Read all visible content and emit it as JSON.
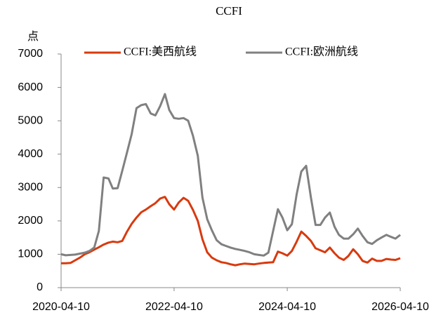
{
  "chart_data": {
    "type": "line",
    "title": "CCFI",
    "y_label": "点",
    "x": [
      "2020-04-10",
      "2020-05-10",
      "2020-06-10",
      "2020-07-10",
      "2020-08-10",
      "2020-09-10",
      "2020-10-10",
      "2020-11-10",
      "2020-12-10",
      "2021-01-10",
      "2021-02-10",
      "2021-03-10",
      "2021-04-10",
      "2021-05-10",
      "2021-06-10",
      "2021-07-10",
      "2021-08-10",
      "2021-09-10",
      "2021-10-10",
      "2021-11-10",
      "2021-12-10",
      "2022-01-10",
      "2022-02-10",
      "2022-03-10",
      "2022-04-10",
      "2022-05-10",
      "2022-06-10",
      "2022-07-10",
      "2022-08-10",
      "2022-09-10",
      "2022-10-10",
      "2022-11-10",
      "2022-12-10",
      "2023-01-10",
      "2023-02-10",
      "2023-03-10",
      "2023-04-10",
      "2023-05-10",
      "2023-06-10",
      "2023-07-10",
      "2023-08-10",
      "2023-09-10",
      "2023-10-10",
      "2023-11-10",
      "2023-12-10",
      "2024-01-10",
      "2024-02-10",
      "2024-03-10",
      "2024-04-10",
      "2024-05-10",
      "2024-06-10",
      "2024-07-10",
      "2024-08-10",
      "2024-09-10",
      "2024-10-10",
      "2024-11-10",
      "2024-12-10",
      "2025-01-10",
      "2025-02-10",
      "2025-03-10",
      "2025-04-10",
      "2025-05-10",
      "2025-06-10",
      "2025-07-10",
      "2025-08-10",
      "2025-09-10",
      "2025-10-10",
      "2025-11-10",
      "2025-12-10",
      "2026-01-10",
      "2026-02-10",
      "2026-03-10",
      "2026-04-10"
    ],
    "series": [
      {
        "name": "CCFI:美西航线",
        "color": "#d83a0e",
        "values": [
          730,
          730,
          740,
          820,
          900,
          1000,
          1060,
          1140,
          1210,
          1290,
          1350,
          1380,
          1360,
          1400,
          1680,
          1910,
          2100,
          2260,
          2340,
          2440,
          2530,
          2670,
          2720,
          2500,
          2340,
          2550,
          2690,
          2600,
          2330,
          2000,
          1450,
          1060,
          900,
          820,
          760,
          740,
          700,
          670,
          700,
          720,
          710,
          700,
          720,
          740,
          750,
          760,
          1080,
          1030,
          960,
          1100,
          1380,
          1680,
          1550,
          1400,
          1180,
          1120,
          1060,
          1200,
          1030,
          900,
          830,
          950,
          1150,
          1000,
          800,
          750,
          870,
          800,
          800,
          860,
          840,
          830,
          880
        ]
      },
      {
        "name": "CCFI:欧洲航线",
        "color": "#808080",
        "values": [
          1000,
          970,
          980,
          990,
          1020,
          1050,
          1100,
          1200,
          1700,
          3300,
          3270,
          2970,
          2980,
          3500,
          4050,
          4600,
          5380,
          5470,
          5500,
          5220,
          5160,
          5440,
          5800,
          5320,
          5080,
          5060,
          5080,
          5000,
          4550,
          3950,
          2700,
          2050,
          1720,
          1420,
          1300,
          1250,
          1200,
          1160,
          1130,
          1100,
          1060,
          1000,
          980,
          960,
          1050,
          1700,
          2350,
          2100,
          1720,
          1900,
          2800,
          3480,
          3650,
          2700,
          1880,
          1880,
          2100,
          2250,
          1820,
          1580,
          1470,
          1470,
          1600,
          1770,
          1550,
          1360,
          1310,
          1420,
          1500,
          1580,
          1520,
          1470,
          1580
        ]
      }
    ],
    "xlim": [
      "2020-04-10",
      "2026-04-10"
    ],
    "xticks": [
      "2020-04-10",
      "2022-04-10",
      "2024-04-10",
      "2026-04-10"
    ],
    "ylim": [
      0,
      7000
    ],
    "yticks": [
      0,
      1000,
      2000,
      3000,
      4000,
      5000,
      6000,
      7000
    ],
    "grid": false,
    "legend": "top"
  }
}
